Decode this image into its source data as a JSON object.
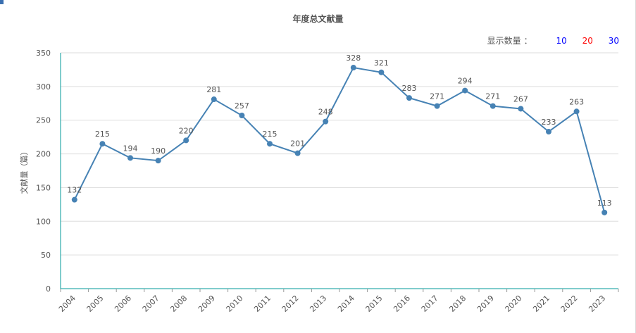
{
  "title": "年度总文献量",
  "selector": {
    "label": "显示数量",
    "separator": "：",
    "options": [
      {
        "label": "10",
        "color": "#0000ff"
      },
      {
        "label": "20",
        "color": "#ff0000"
      },
      {
        "label": "30",
        "color": "#0000ff"
      }
    ]
  },
  "colors": {
    "line": "#4682b4",
    "axis": "#009999",
    "grid": "#dddddd",
    "text": "#555555"
  },
  "chart_data": {
    "type": "line",
    "title": "年度总文献量",
    "xlabel": "",
    "ylabel": "文献量（篇）",
    "ylim": [
      0,
      350
    ],
    "yticks": [
      "0",
      "50",
      "100",
      "150",
      "200",
      "250",
      "300",
      "350"
    ],
    "grid": true,
    "categories": [
      "2004",
      "2005",
      "2006",
      "2007",
      "2008",
      "2009",
      "2010",
      "2011",
      "2012",
      "2013",
      "2014",
      "2015",
      "2016",
      "2017",
      "2018",
      "2019",
      "2020",
      "2021",
      "2022",
      "2023"
    ],
    "values": [
      132,
      215,
      194,
      190,
      220,
      281,
      257,
      215,
      201,
      248,
      328,
      321,
      283,
      271,
      294,
      271,
      267,
      233,
      263,
      113
    ]
  }
}
